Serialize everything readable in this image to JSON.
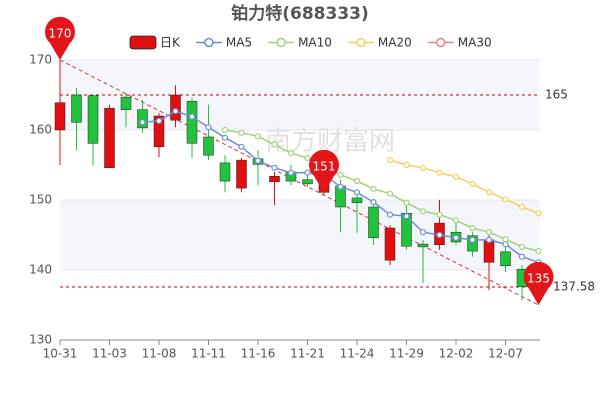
{
  "chart_data": {
    "type": "candlestick",
    "title": "铂力特(688333)",
    "watermark": "南方财富网",
    "categories": [
      "10-31",
      null,
      null,
      "11-03",
      null,
      null,
      "11-08",
      null,
      null,
      "11-11",
      null,
      null,
      "11-16",
      null,
      null,
      "11-21",
      null,
      null,
      "11-24",
      null,
      null,
      "11-29",
      null,
      null,
      "12-02",
      null,
      null,
      "12-07",
      null,
      null
    ],
    "candles": {
      "name": "日K",
      "up_color": "#e01010",
      "down_color": "#22c33c",
      "open": [
        160.0,
        165.0,
        164.9,
        154.6,
        164.7,
        162.9,
        157.6,
        161.4,
        164.1,
        159.0,
        155.3,
        151.7,
        155.9,
        152.6,
        154.0,
        152.9,
        151.1,
        152.0,
        150.3,
        149.0,
        141.4,
        148.1,
        143.7,
        143.6,
        145.4,
        144.9,
        141.1,
        142.6,
        140.1,
        139.7
      ],
      "close": [
        163.9,
        161.1,
        158.1,
        163.1,
        162.9,
        160.3,
        162.0,
        165.0,
        158.1,
        156.4,
        152.7,
        155.7,
        155.1,
        153.4,
        152.7,
        152.3,
        154.6,
        149.0,
        149.6,
        144.6,
        146.0,
        143.4,
        143.3,
        146.7,
        144.0,
        142.7,
        144.3,
        140.6,
        137.6,
        137.1
      ],
      "high": [
        170,
        166.0,
        165.0,
        163.6,
        165.3,
        164.3,
        162.4,
        166.4,
        164.6,
        163.6,
        156.4,
        156.0,
        157.1,
        154.0,
        155.0,
        153.6,
        155.7,
        152.9,
        151.4,
        149.6,
        146.4,
        149.3,
        144.3,
        150.0,
        147.4,
        145.4,
        145.0,
        143.6,
        140.7,
        140.0
      ],
      "low": [
        155.0,
        157.1,
        154.9,
        154.6,
        160.4,
        159.6,
        156.1,
        160.4,
        156.0,
        155.7,
        151.1,
        151.1,
        152.1,
        149.3,
        152.1,
        151.9,
        150.7,
        145.4,
        145.3,
        143.6,
        140.7,
        142.9,
        138.1,
        142.9,
        143.6,
        141.9,
        137.1,
        139.7,
        135.7,
        135
      ]
    },
    "series": [
      {
        "name": "MA5",
        "color": "#6b8fd6",
        "values": [
          null,
          null,
          null,
          null,
          null,
          161.1,
          161.3,
          162.7,
          161.9,
          160.4,
          158.9,
          157.6,
          155.6,
          154.6,
          153.9,
          153.9,
          153.6,
          151.9,
          151.1,
          149.7,
          147.9,
          147.7,
          145.4,
          145.0,
          144.6,
          144.3,
          144.3,
          143.7,
          141.9,
          141.1
        ]
      },
      {
        "name": "MA10",
        "color": "#9ed47b",
        "values": [
          null,
          null,
          null,
          null,
          null,
          null,
          null,
          null,
          null,
          null,
          160.0,
          159.6,
          159.1,
          157.9,
          156.7,
          156.0,
          154.6,
          153.6,
          152.7,
          151.6,
          150.9,
          149.6,
          148.4,
          147.9,
          147.1,
          146.0,
          145.4,
          144.4,
          143.3,
          142.7
        ]
      },
      {
        "name": "MA20",
        "color": "#f5cf5c",
        "values": [
          null,
          null,
          null,
          null,
          null,
          null,
          null,
          null,
          null,
          null,
          null,
          null,
          null,
          null,
          null,
          null,
          null,
          null,
          null,
          null,
          155.7,
          155.0,
          154.6,
          153.9,
          153.3,
          152.3,
          151.1,
          150.1,
          149.0,
          148.1
        ]
      },
      {
        "name": "MA30",
        "color": "#f08080",
        "values": [
          null,
          null,
          null,
          null,
          null,
          null,
          null,
          null,
          null,
          null,
          null,
          null,
          null,
          null,
          null,
          null,
          null,
          null,
          null,
          null,
          null,
          null,
          null,
          null,
          null,
          null,
          null,
          null,
          null,
          null
        ]
      }
    ],
    "ylim": [
      130,
      170
    ],
    "yticks": [
      130,
      140,
      150,
      160,
      170
    ],
    "reference_lines": [
      165,
      137.58
    ],
    "pins": [
      {
        "index": 0,
        "value": 170
      },
      {
        "index": 16,
        "value": 151
      },
      {
        "index": 29,
        "value": 135
      }
    ],
    "grid": true
  }
}
